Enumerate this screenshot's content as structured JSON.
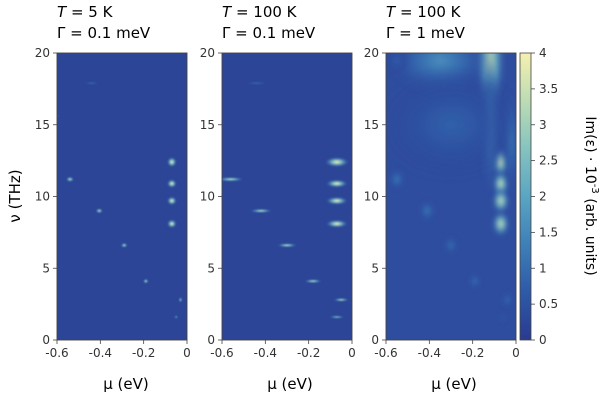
{
  "chart_data": {
    "type": "heatmap",
    "shared": {
      "xlabel": "μ (eV)",
      "ylabel": "ν (THz)",
      "xlim": [
        -0.6,
        0
      ],
      "ylim": [
        0,
        20
      ],
      "xticks": [
        -0.6,
        -0.4,
        -0.2,
        0
      ],
      "xtick_labels": [
        "-0.6",
        "-0.4",
        "-0.2",
        "0"
      ],
      "yticks": [
        0,
        5,
        10,
        15,
        20
      ],
      "ytick_labels": [
        "0",
        "5",
        "10",
        "15",
        "20"
      ],
      "colorbar": {
        "label_main": "Im(ε) · 10",
        "label_exp": "-3",
        "label_tail": " (arb. units)",
        "range": [
          0,
          4
        ],
        "ticks": [
          0,
          0.5,
          1,
          1.5,
          2,
          2.5,
          3,
          3.5,
          4
        ],
        "tick_labels": [
          "0",
          "0.5",
          "1",
          "1.5",
          "2",
          "2.5",
          "3",
          "3.5",
          "4"
        ],
        "colors": [
          "#2a3a8f",
          "#2e5aa8",
          "#3f7fb8",
          "#5aa5c2",
          "#86c3c0",
          "#bcdcb4",
          "#f5f0b0"
        ]
      }
    },
    "panels": [
      {
        "title_T": "T",
        "title_T_value": " = 5 K",
        "title_gamma": "Γ = 0.1 meV",
        "background": "#2d4597",
        "features": [
          {
            "mu": -0.54,
            "nu": 11.2,
            "dmu": 0.018,
            "dnu": 0.18,
            "intensity": 3.5
          },
          {
            "mu": -0.405,
            "nu": 9.0,
            "dmu": 0.016,
            "dnu": 0.17,
            "intensity": 3.5
          },
          {
            "mu": -0.29,
            "nu": 6.6,
            "dmu": 0.015,
            "dnu": 0.16,
            "intensity": 3.5
          },
          {
            "mu": -0.19,
            "nu": 4.1,
            "dmu": 0.012,
            "dnu": 0.16,
            "intensity": 3.5
          },
          {
            "mu": -0.07,
            "nu": 12.4,
            "dmu": 0.022,
            "dnu": 0.35,
            "intensity": 4
          },
          {
            "mu": -0.07,
            "nu": 10.9,
            "dmu": 0.022,
            "dnu": 0.3,
            "intensity": 4
          },
          {
            "mu": -0.07,
            "nu": 9.7,
            "dmu": 0.022,
            "dnu": 0.3,
            "intensity": 4
          },
          {
            "mu": -0.07,
            "nu": 8.1,
            "dmu": 0.022,
            "dnu": 0.3,
            "intensity": 4
          },
          {
            "mu": -0.03,
            "nu": 2.8,
            "dmu": 0.008,
            "dnu": 0.18,
            "intensity": 3.2
          },
          {
            "mu": -0.05,
            "nu": 1.6,
            "dmu": 0.008,
            "dnu": 0.12,
            "intensity": 2.5
          },
          {
            "mu": -0.44,
            "nu": 17.9,
            "dmu": 0.035,
            "dnu": 0.08,
            "intensity": 1.2
          },
          {
            "mu": -0.6,
            "nu": 15.6,
            "dmu": 0.015,
            "dnu": 0.08,
            "intensity": 1
          }
        ]
      },
      {
        "title_T": "T",
        "title_T_value": " = 100 K",
        "title_gamma": "Γ = 0.1 meV",
        "background": "#2d4597",
        "features": [
          {
            "mu": -0.56,
            "nu": 11.2,
            "dmu": 0.06,
            "dnu": 0.15,
            "intensity": 3.5
          },
          {
            "mu": -0.42,
            "nu": 9.0,
            "dmu": 0.05,
            "dnu": 0.14,
            "intensity": 3.5
          },
          {
            "mu": -0.3,
            "nu": 6.6,
            "dmu": 0.045,
            "dnu": 0.14,
            "intensity": 3.5
          },
          {
            "mu": -0.18,
            "nu": 4.1,
            "dmu": 0.04,
            "dnu": 0.13,
            "intensity": 3.5
          },
          {
            "mu": -0.07,
            "nu": 12.4,
            "dmu": 0.055,
            "dnu": 0.35,
            "intensity": 4
          },
          {
            "mu": -0.07,
            "nu": 10.9,
            "dmu": 0.05,
            "dnu": 0.28,
            "intensity": 4
          },
          {
            "mu": -0.07,
            "nu": 9.7,
            "dmu": 0.05,
            "dnu": 0.28,
            "intensity": 4
          },
          {
            "mu": -0.07,
            "nu": 8.1,
            "dmu": 0.05,
            "dnu": 0.28,
            "intensity": 4
          },
          {
            "mu": -0.05,
            "nu": 2.8,
            "dmu": 0.035,
            "dnu": 0.12,
            "intensity": 3.5
          },
          {
            "mu": -0.07,
            "nu": 1.6,
            "dmu": 0.035,
            "dnu": 0.1,
            "intensity": 3
          },
          {
            "mu": -0.44,
            "nu": 17.9,
            "dmu": 0.05,
            "dnu": 0.08,
            "intensity": 1.2
          }
        ]
      },
      {
        "title_T": "T",
        "title_T_value": " = 100 K",
        "title_gamma": "Γ = 1 meV",
        "background": "#2f4d9f",
        "features": [
          {
            "mu": -0.55,
            "nu": 11.2,
            "dmu": 0.04,
            "dnu": 0.8,
            "intensity": 1.2
          },
          {
            "mu": -0.41,
            "nu": 9.0,
            "dmu": 0.04,
            "dnu": 0.8,
            "intensity": 1.2
          },
          {
            "mu": -0.3,
            "nu": 6.6,
            "dmu": 0.035,
            "dnu": 0.7,
            "intensity": 1.1
          },
          {
            "mu": -0.19,
            "nu": 4.1,
            "dmu": 0.03,
            "dnu": 0.6,
            "intensity": 1.1
          },
          {
            "mu": -0.07,
            "nu": 12.4,
            "dmu": 0.045,
            "dnu": 1.0,
            "intensity": 3.8
          },
          {
            "mu": -0.07,
            "nu": 10.9,
            "dmu": 0.04,
            "dnu": 0.9,
            "intensity": 3.6
          },
          {
            "mu": -0.07,
            "nu": 9.7,
            "dmu": 0.04,
            "dnu": 0.9,
            "intensity": 3.6
          },
          {
            "mu": -0.07,
            "nu": 8.1,
            "dmu": 0.04,
            "dnu": 0.9,
            "intensity": 3.6
          },
          {
            "mu": -0.04,
            "nu": 2.8,
            "dmu": 0.03,
            "dnu": 0.6,
            "intensity": 1.0
          },
          {
            "mu": -0.06,
            "nu": 1.6,
            "dmu": 0.02,
            "dnu": 0.4,
            "intensity": 0.8
          },
          {
            "mu": -0.12,
            "nu": 19.5,
            "dmu": 0.07,
            "dnu": 3.5,
            "intensity": 3.5
          },
          {
            "mu": -0.12,
            "nu": 15.0,
            "dmu": 0.05,
            "dnu": 5.0,
            "intensity": 1.6
          },
          {
            "mu": -0.02,
            "nu": 14.0,
            "dmu": 0.05,
            "dnu": 4.0,
            "intensity": 1.2
          },
          {
            "mu": -0.35,
            "nu": 19.5,
            "dmu": 0.25,
            "dnu": 2.5,
            "intensity": 1.6
          },
          {
            "mu": -0.55,
            "nu": 19.5,
            "dmu": 0.06,
            "dnu": 1.2,
            "intensity": 0.7
          },
          {
            "mu": -0.3,
            "nu": 15.0,
            "dmu": 0.35,
            "dnu": 4.0,
            "intensity": 0.8
          }
        ]
      }
    ]
  }
}
